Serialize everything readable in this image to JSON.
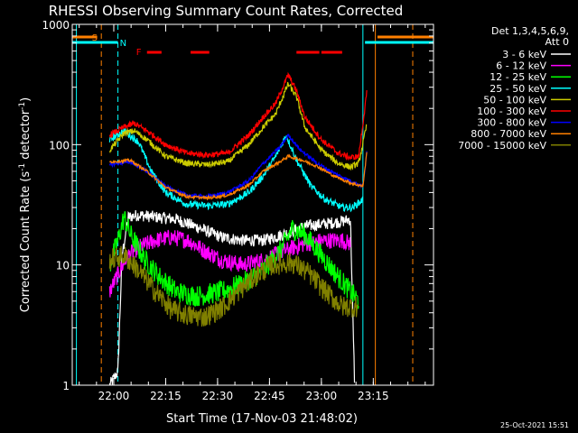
{
  "chart_data": {
    "type": "line",
    "title": "RHESSI Observing Summary Count Rates, Corrected",
    "xlabel": "Start Time (17-Nov-03 21:48:02)",
    "ylabel_main": "Corrected Count Rate (s",
    "ylabel_sup1": "-1",
    "ylabel_mid": " detector",
    "ylabel_sup2": "-1",
    "ylabel_end": ")",
    "yscale": "log",
    "ylim": [
      1,
      1000
    ],
    "xlim_minutes": [
      21.8,
      23.54
    ],
    "x_ticks": [
      {
        "label": "22:00",
        "t": 22.0
      },
      {
        "label": "22:15",
        "t": 22.25
      },
      {
        "label": "22:30",
        "t": 22.5
      },
      {
        "label": "22:45",
        "t": 22.75
      },
      {
        "label": "23:00",
        "t": 23.0
      },
      {
        "label": "23:15",
        "t": 23.25
      }
    ],
    "y_ticks": [
      {
        "label": "1000",
        "v": 1000
      },
      {
        "label": "100",
        "v": 100
      },
      {
        "label": "10",
        "v": 10
      },
      {
        "label": "1",
        "v": 1
      }
    ],
    "legend_header": [
      "Det 1,3,4,5,6,9,",
      "Att 0"
    ],
    "legend_position": "right",
    "timestamp": "25-Oct-2021 15:51",
    "flags": [
      {
        "name": "S",
        "color": "#ff8000",
        "start": 21.8,
        "end": 21.92,
        "start2": 23.27,
        "end2": 23.54
      },
      {
        "name": "N",
        "color": "#00ffff",
        "start": 21.8,
        "end": 22.02,
        "start2": 23.21,
        "end2": 23.54
      },
      {
        "name": "F",
        "color": "#ff0000",
        "segments": [
          [
            22.16,
            22.23
          ],
          [
            22.37,
            22.46
          ],
          [
            22.88,
            22.99
          ],
          [
            23.0,
            23.1
          ]
        ]
      }
    ],
    "vlines": [
      {
        "t": 21.82,
        "color": "#00ffff",
        "dashed": false
      },
      {
        "t": 21.94,
        "color": "#ff8000",
        "dashed": true
      },
      {
        "t": 22.02,
        "color": "#00ffff",
        "dashed": true
      },
      {
        "t": 23.2,
        "color": "#00ffff",
        "dashed": false
      },
      {
        "t": 23.26,
        "color": "#ff8000",
        "dashed": false
      },
      {
        "t": 23.44,
        "color": "#ff8000",
        "dashed": true
      }
    ],
    "series": [
      {
        "name": "3 - 6 keV",
        "color": "#ffffff",
        "noise": 0.05,
        "points": [
          [
            21.98,
            1
          ],
          [
            22.02,
            1.3
          ],
          [
            22.04,
            12
          ],
          [
            22.07,
            25
          ],
          [
            22.12,
            26
          ],
          [
            22.2,
            25
          ],
          [
            22.3,
            24
          ],
          [
            22.42,
            20
          ],
          [
            22.52,
            17
          ],
          [
            22.62,
            16
          ],
          [
            22.72,
            16
          ],
          [
            22.82,
            18
          ],
          [
            22.92,
            21
          ],
          [
            23.02,
            22
          ],
          [
            23.1,
            23
          ],
          [
            23.14,
            24
          ],
          [
            23.16,
            1
          ]
        ]
      },
      {
        "name": "6 - 12 keV",
        "color": "#ff00ff",
        "noise": 0.07,
        "points": [
          [
            21.98,
            6
          ],
          [
            22.03,
            9
          ],
          [
            22.07,
            12
          ],
          [
            22.12,
            14
          ],
          [
            22.2,
            16
          ],
          [
            22.28,
            17
          ],
          [
            22.36,
            16
          ],
          [
            22.44,
            13
          ],
          [
            22.52,
            11
          ],
          [
            22.62,
            10
          ],
          [
            22.72,
            11
          ],
          [
            22.82,
            13
          ],
          [
            22.92,
            15
          ],
          [
            23.02,
            16
          ],
          [
            23.1,
            16
          ],
          [
            23.14,
            15
          ]
        ]
      },
      {
        "name": "12 - 25 keV",
        "color": "#00ff00",
        "noise": 0.09,
        "points": [
          [
            21.98,
            10
          ],
          [
            22.02,
            16
          ],
          [
            22.05,
            25
          ],
          [
            22.08,
            18
          ],
          [
            22.15,
            11
          ],
          [
            22.22,
            8
          ],
          [
            22.3,
            6
          ],
          [
            22.4,
            5.5
          ],
          [
            22.52,
            6
          ],
          [
            22.62,
            7
          ],
          [
            22.72,
            9
          ],
          [
            22.8,
            13
          ],
          [
            22.86,
            20
          ],
          [
            22.92,
            18
          ],
          [
            23.0,
            12
          ],
          [
            23.08,
            8
          ],
          [
            23.14,
            6
          ],
          [
            23.18,
            5
          ]
        ]
      },
      {
        "name": "25 - 50 keV",
        "color": "#00ffff",
        "noise": 0.03,
        "points": [
          [
            21.98,
            110
          ],
          [
            22.05,
            130
          ],
          [
            22.12,
            105
          ],
          [
            22.18,
            60
          ],
          [
            22.25,
            40
          ],
          [
            22.35,
            32
          ],
          [
            22.45,
            31
          ],
          [
            22.55,
            32
          ],
          [
            22.65,
            40
          ],
          [
            22.72,
            55
          ],
          [
            22.78,
            80
          ],
          [
            22.83,
            120
          ],
          [
            22.88,
            75
          ],
          [
            22.95,
            45
          ],
          [
            23.02,
            35
          ],
          [
            23.1,
            30
          ],
          [
            23.15,
            30
          ],
          [
            23.2,
            35
          ]
        ]
      },
      {
        "name": "50 - 100 keV",
        "color": "#cccc00",
        "noise": 0.025,
        "points": [
          [
            21.98,
            90
          ],
          [
            22.05,
            125
          ],
          [
            22.1,
            130
          ],
          [
            22.16,
            110
          ],
          [
            22.25,
            80
          ],
          [
            22.35,
            70
          ],
          [
            22.45,
            68
          ],
          [
            22.55,
            72
          ],
          [
            22.65,
            100
          ],
          [
            22.72,
            140
          ],
          [
            22.78,
            180
          ],
          [
            22.84,
            320
          ],
          [
            22.88,
            250
          ],
          [
            22.92,
            140
          ],
          [
            23.0,
            90
          ],
          [
            23.08,
            70
          ],
          [
            23.14,
            65
          ],
          [
            23.18,
            70
          ],
          [
            23.22,
            150
          ]
        ]
      },
      {
        "name": "100 - 300 keV",
        "color": "#ff0000",
        "noise": 0.025,
        "points": [
          [
            21.98,
            120
          ],
          [
            22.05,
            140
          ],
          [
            22.1,
            150
          ],
          [
            22.16,
            130
          ],
          [
            22.25,
            100
          ],
          [
            22.35,
            85
          ],
          [
            22.45,
            82
          ],
          [
            22.55,
            85
          ],
          [
            22.65,
            120
          ],
          [
            22.72,
            170
          ],
          [
            22.78,
            220
          ],
          [
            22.84,
            380
          ],
          [
            22.88,
            280
          ],
          [
            22.92,
            170
          ],
          [
            23.0,
            110
          ],
          [
            23.08,
            85
          ],
          [
            23.14,
            78
          ],
          [
            23.18,
            80
          ],
          [
            23.22,
            280
          ]
        ]
      },
      {
        "name": "300 - 800 keV",
        "color": "#0000ff",
        "noise": 0.015,
        "points": [
          [
            21.98,
            68
          ],
          [
            22.08,
            72
          ],
          [
            22.16,
            60
          ],
          [
            22.25,
            45
          ],
          [
            22.35,
            38
          ],
          [
            22.45,
            37
          ],
          [
            22.55,
            40
          ],
          [
            22.65,
            50
          ],
          [
            22.72,
            70
          ],
          [
            22.8,
            95
          ],
          [
            22.84,
            120
          ],
          [
            22.9,
            90
          ],
          [
            22.98,
            70
          ],
          [
            23.06,
            58
          ],
          [
            23.14,
            50
          ],
          [
            23.2,
            45
          ],
          [
            23.22,
            90
          ]
        ]
      },
      {
        "name": "800 - 7000 keV",
        "color": "#ff8000",
        "noise": 0.012,
        "points": [
          [
            21.98,
            72
          ],
          [
            22.08,
            74
          ],
          [
            22.16,
            60
          ],
          [
            22.25,
            44
          ],
          [
            22.35,
            37
          ],
          [
            22.45,
            36
          ],
          [
            22.55,
            38
          ],
          [
            22.65,
            46
          ],
          [
            22.72,
            60
          ],
          [
            22.8,
            72
          ],
          [
            22.84,
            80
          ],
          [
            22.9,
            75
          ],
          [
            22.98,
            66
          ],
          [
            23.06,
            55
          ],
          [
            23.14,
            48
          ],
          [
            23.2,
            45
          ],
          [
            23.22,
            90
          ]
        ]
      },
      {
        "name": "7000 - 15000 keV",
        "color": "#808000",
        "noise": 0.09,
        "points": [
          [
            21.98,
            11
          ],
          [
            22.05,
            12
          ],
          [
            22.12,
            9
          ],
          [
            22.2,
            6
          ],
          [
            22.28,
            4.2
          ],
          [
            22.36,
            3.8
          ],
          [
            22.44,
            3.7
          ],
          [
            22.52,
            4.4
          ],
          [
            22.6,
            6
          ],
          [
            22.68,
            8
          ],
          [
            22.76,
            10
          ],
          [
            22.86,
            10.5
          ],
          [
            22.94,
            8.5
          ],
          [
            23.02,
            6
          ],
          [
            23.1,
            4.5
          ],
          [
            23.18,
            4.5
          ]
        ]
      }
    ]
  }
}
